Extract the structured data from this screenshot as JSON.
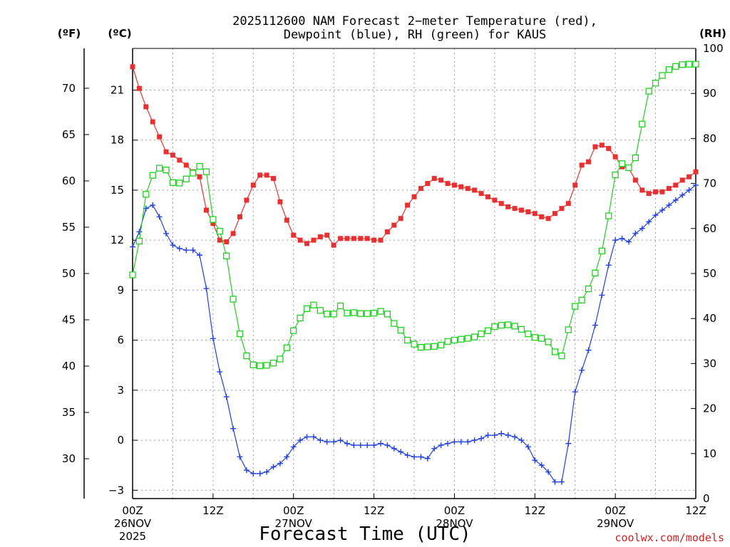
{
  "title_line1": "2025112600 NAM Forecast 2−meter Temperature (red),",
  "title_line2": "Dewpoint (blue), RH (green) for KAUS",
  "credit": "coolwx.com/models",
  "chart_data": {
    "type": "line",
    "title": "2025112600 NAM Forecast 2-meter Temperature (red), Dewpoint (blue), RH (green) for KAUS",
    "xlabel": "Forecast Time (UTC)",
    "x_hours": [
      0,
      1,
      2,
      3,
      4,
      5,
      6,
      7,
      8,
      9,
      10,
      11,
      12,
      13,
      14,
      15,
      16,
      17,
      18,
      19,
      20,
      21,
      22,
      23,
      24,
      25,
      26,
      27,
      28,
      29,
      30,
      31,
      32,
      33,
      34,
      35,
      36,
      37,
      38,
      39,
      40,
      41,
      42,
      43,
      44,
      45,
      46,
      47,
      48,
      49,
      50,
      51,
      52,
      53,
      54,
      55,
      56,
      57,
      58,
      59,
      60,
      61,
      62,
      63,
      64,
      65,
      66,
      67,
      68,
      69,
      70,
      71,
      72,
      73,
      74,
      75,
      76,
      77,
      78,
      79,
      80,
      81,
      82,
      83,
      84
    ],
    "x_ticks": [
      {
        "hour": 0,
        "labels": [
          "00Z",
          "26NOV",
          "2025"
        ]
      },
      {
        "hour": 12,
        "labels": [
          "12Z"
        ]
      },
      {
        "hour": 24,
        "labels": [
          "00Z",
          "27NOV"
        ]
      },
      {
        "hour": 36,
        "labels": [
          "12Z"
        ]
      },
      {
        "hour": 48,
        "labels": [
          "00Z",
          "28NOV"
        ]
      },
      {
        "hour": 60,
        "labels": [
          "12Z"
        ]
      },
      {
        "hour": 72,
        "labels": [
          "00Z",
          "29NOV"
        ]
      },
      {
        "hour": 84,
        "labels": [
          "12Z"
        ]
      }
    ],
    "axes": {
      "celsius": {
        "unit_label": "(ºC)",
        "range": [
          -3.5,
          23.5
        ],
        "ticks": [
          -3,
          0,
          3,
          6,
          9,
          12,
          15,
          18,
          21
        ]
      },
      "fahrenheit": {
        "unit_label": "(ºF)",
        "ticks": [
          30,
          35,
          40,
          45,
          50,
          55,
          60,
          65,
          70
        ]
      },
      "rh": {
        "unit_label": "(RH)",
        "range": [
          0,
          100
        ],
        "ticks": [
          0,
          10,
          20,
          30,
          40,
          50,
          60,
          70,
          80,
          90,
          100
        ]
      }
    },
    "grid": true,
    "series": [
      {
        "name": "Temperature",
        "color": "#e83030",
        "axis": "celsius",
        "marker": "filled-square",
        "values": [
          22.4,
          21.1,
          20.0,
          19.1,
          18.2,
          17.3,
          17.1,
          16.8,
          16.5,
          16.1,
          15.8,
          13.8,
          13.0,
          12.0,
          11.9,
          12.4,
          13.4,
          14.4,
          15.3,
          15.9,
          15.9,
          15.7,
          14.3,
          13.2,
          12.3,
          12.0,
          11.8,
          12.0,
          12.2,
          12.3,
          11.7,
          12.1,
          12.1,
          12.1,
          12.1,
          12.1,
          12.0,
          12.0,
          12.5,
          12.9,
          13.3,
          14.1,
          14.6,
          15.1,
          15.4,
          15.7,
          15.6,
          15.4,
          15.3,
          15.2,
          15.1,
          15.0,
          14.8,
          14.6,
          14.4,
          14.2,
          14.0,
          13.9,
          13.8,
          13.7,
          13.6,
          13.4,
          13.3,
          13.6,
          13.9,
          14.2,
          15.3,
          16.5,
          16.7,
          17.6,
          17.7,
          17.5,
          17.0,
          16.4,
          16.3,
          15.6,
          15.0,
          14.8,
          14.9,
          14.9,
          15.1,
          15.3,
          15.6,
          15.8,
          16.1
        ]
      },
      {
        "name": "Dewpoint",
        "color": "#2040e0",
        "axis": "celsius",
        "marker": "plus",
        "values": [
          11.6,
          12.5,
          13.9,
          14.1,
          13.4,
          12.4,
          11.7,
          11.5,
          11.4,
          11.4,
          11.1,
          9.1,
          6.1,
          4.1,
          2.6,
          0.7,
          -1.0,
          -1.8,
          -2.0,
          -2.0,
          -1.9,
          -1.6,
          -1.4,
          -1.0,
          -0.4,
          0.0,
          0.2,
          0.2,
          0.0,
          -0.1,
          -0.1,
          0.0,
          -0.2,
          -0.3,
          -0.3,
          -0.3,
          -0.3,
          -0.2,
          -0.3,
          -0.5,
          -0.7,
          -0.9,
          -1.0,
          -1.0,
          -1.1,
          -0.5,
          -0.3,
          -0.2,
          -0.1,
          -0.1,
          -0.1,
          0.0,
          0.1,
          0.3,
          0.3,
          0.4,
          0.3,
          0.2,
          0.0,
          -0.4,
          -1.2,
          -1.5,
          -1.9,
          -2.5,
          -2.5,
          -0.2,
          2.9,
          4.2,
          5.4,
          6.9,
          8.7,
          10.5,
          12.0,
          12.1,
          11.9,
          12.4,
          12.7,
          13.1,
          13.5,
          13.8,
          14.1,
          14.4,
          14.7,
          15.0,
          15.3
        ]
      },
      {
        "name": "RH",
        "color": "#20d020",
        "axis": "rh",
        "marker": "open-square",
        "values": [
          49.7,
          57.2,
          67.6,
          71.8,
          73.4,
          73.0,
          70.2,
          70.1,
          71.0,
          72.3,
          73.8,
          72.6,
          62.0,
          59.4,
          53.9,
          44.3,
          36.6,
          31.7,
          29.7,
          29.5,
          29.6,
          30.1,
          31.0,
          33.5,
          37.3,
          40.1,
          42.2,
          43.0,
          41.8,
          41.0,
          41.0,
          42.8,
          41.2,
          41.3,
          41.1,
          41.1,
          41.2,
          41.6,
          41.0,
          38.9,
          37.4,
          35.2,
          34.3,
          33.6,
          33.7,
          33.8,
          34.1,
          34.9,
          35.2,
          35.4,
          35.6,
          35.9,
          36.6,
          37.3,
          38.2,
          38.5,
          38.6,
          38.3,
          37.6,
          36.6,
          35.8,
          35.6,
          34.8,
          32.6,
          31.7,
          37.5,
          42.7,
          44.1,
          46.6,
          50.1,
          55.0,
          62.8,
          71.9,
          74.4,
          73.5,
          75.7,
          83.2,
          90.5,
          92.3,
          94.0,
          95.3,
          96.0,
          96.4,
          96.5,
          96.5
        ]
      }
    ]
  }
}
